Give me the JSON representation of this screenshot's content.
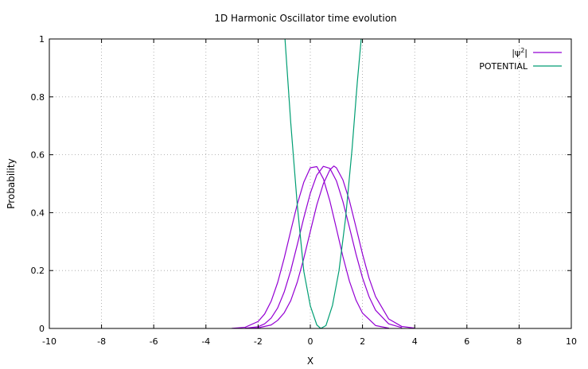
{
  "chart_data": {
    "type": "line",
    "title": "1D Harmonic Oscillator time evolution",
    "xlabel": "X",
    "ylabel": "Probability",
    "xlim": [
      -10,
      10
    ],
    "ylim": [
      0,
      1
    ],
    "xticks": [
      "-10",
      "-8",
      "-6",
      "-4",
      "-2",
      "0",
      "2",
      "4",
      "6",
      "8",
      "10"
    ],
    "yticks": [
      "0",
      "0.2",
      "0.4",
      "0.6",
      "0.8",
      "1"
    ],
    "grid": true,
    "legend_position": "top-right",
    "legend": [
      {
        "label": "|ψ",
        "sup": "2",
        "label_end": "|",
        "color": "#9400d3"
      },
      {
        "label": "POTENTIAL",
        "color": "#009e73"
      }
    ],
    "series": [
      {
        "color": "#9400d3",
        "x": [
          -3,
          -2.5,
          -2,
          -1.75,
          -1.5,
          -1.25,
          -1,
          -0.75,
          -0.5,
          -0.25,
          0,
          0.25,
          0.5,
          0.75,
          1,
          1.25,
          1.5,
          1.75,
          2,
          2.5,
          3
        ],
        "y": [
          0.0004,
          0.004,
          0.024,
          0.05,
          0.094,
          0.159,
          0.243,
          0.337,
          0.429,
          0.505,
          0.555,
          0.559,
          0.517,
          0.44,
          0.345,
          0.248,
          0.163,
          0.098,
          0.053,
          0.01,
          0.001
        ]
      },
      {
        "color": "#9400d3",
        "x": [
          -2.5,
          -2,
          -1.75,
          -1.5,
          -1.25,
          -1,
          -0.75,
          -0.5,
          -0.25,
          0,
          0.25,
          0.5,
          0.75,
          1,
          1.25,
          1.5,
          1.75,
          2,
          2.25,
          2.5,
          3,
          3.5
        ],
        "y": [
          0.0008,
          0.006,
          0.016,
          0.036,
          0.071,
          0.126,
          0.2,
          0.289,
          0.382,
          0.467,
          0.53,
          0.56,
          0.553,
          0.51,
          0.438,
          0.349,
          0.257,
          0.175,
          0.11,
          0.063,
          0.016,
          0.003
        ]
      },
      {
        "color": "#9400d3",
        "x": [
          -2.5,
          -2,
          -1.5,
          -1.25,
          -1,
          -0.75,
          -0.5,
          -0.25,
          0,
          0.25,
          0.5,
          0.75,
          0.9,
          1,
          1.25,
          1.5,
          1.75,
          2,
          2.25,
          2.5,
          3,
          3.5,
          4
        ],
        "y": [
          0.0002,
          0.002,
          0.012,
          0.028,
          0.054,
          0.096,
          0.16,
          0.242,
          0.335,
          0.427,
          0.5,
          0.548,
          0.561,
          0.555,
          0.513,
          0.441,
          0.35,
          0.257,
          0.174,
          0.11,
          0.033,
          0.007,
          0.001
        ]
      },
      {
        "color": "#009e73",
        "x": [
          -0.97,
          -0.75,
          -0.5,
          -0.25,
          0,
          0.25,
          0.4,
          0.6,
          0.85,
          1.1,
          1.35,
          1.6,
          1.8,
          1.95
        ],
        "y": [
          1.0,
          0.711,
          0.427,
          0.198,
          0.078,
          0.012,
          0.0,
          0.01,
          0.08,
          0.2,
          0.38,
          0.62,
          0.85,
          1.0
        ]
      }
    ]
  }
}
